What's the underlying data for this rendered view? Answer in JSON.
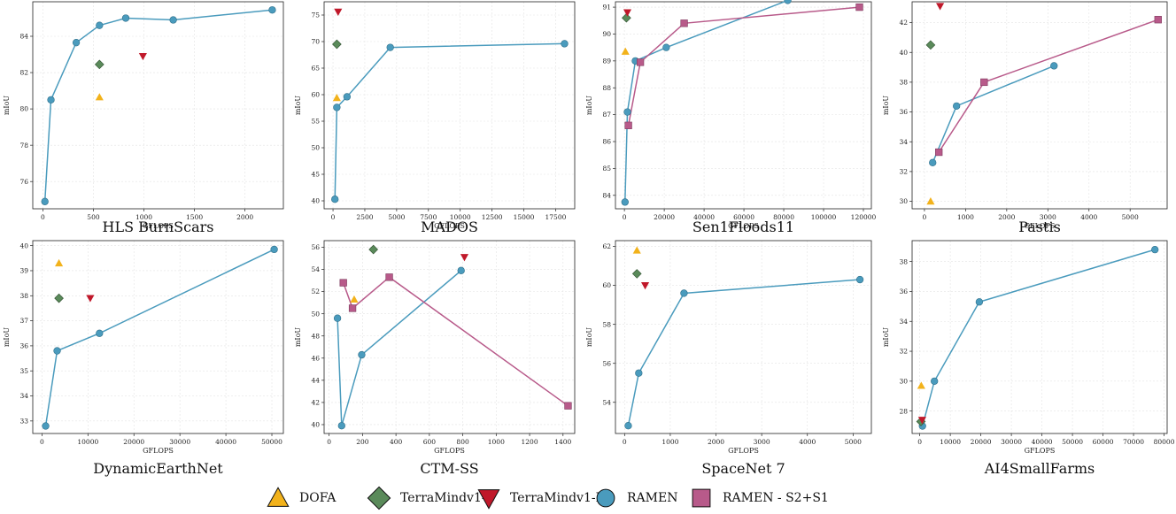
{
  "colors": {
    "DOFA": "#f2b21b",
    "TerraMindv1-B": "#5a8a5a",
    "TerraMindv1-L": "#c0182a",
    "RAMEN": "#4a9bbd",
    "RAMEN - S2+S1": "#b85a8a"
  },
  "legend": {
    "items": [
      {
        "label": "DOFA",
        "marker": "triangle-up",
        "color": "#f2b21b"
      },
      {
        "label": "TerraMindv1-B",
        "marker": "diamond",
        "color": "#5a8a5a"
      },
      {
        "label": "TerraMindv1-L",
        "marker": "triangle-down",
        "color": "#c0182a"
      },
      {
        "label": "RAMEN",
        "marker": "circle",
        "color": "#4a9bbd"
      },
      {
        "label": "RAMEN - S2+S1",
        "marker": "square",
        "color": "#b85a8a"
      }
    ]
  },
  "chart_data": [
    {
      "type": "scatter",
      "title": "HLS BurnScars",
      "xlabel": "GFLOPS",
      "ylabel": "mIoU",
      "xlim": [
        -100,
        2380
      ],
      "ylim": [
        74.5,
        85.9
      ],
      "xticks": [
        0,
        500,
        1000,
        1500,
        2000
      ],
      "yticks": [
        76,
        78,
        80,
        82,
        84
      ],
      "grid": true,
      "series": [
        {
          "name": "RAMEN",
          "marker": "circle",
          "line": true,
          "points": [
            [
              20,
              74.9
            ],
            [
              80,
              80.5
            ],
            [
              330,
              83.65
            ],
            [
              560,
              84.6
            ],
            [
              820,
              85.0
            ],
            [
              1290,
              84.9
            ],
            [
              2270,
              85.45
            ]
          ]
        },
        {
          "name": "DOFA",
          "marker": "triangle-up",
          "line": false,
          "points": [
            [
              560,
              80.65
            ]
          ]
        },
        {
          "name": "TerraMindv1-B",
          "marker": "diamond",
          "line": false,
          "points": [
            [
              560,
              82.45
            ]
          ]
        },
        {
          "name": "TerraMindv1-L",
          "marker": "triangle-down",
          "line": false,
          "points": [
            [
              990,
              82.9
            ]
          ]
        }
      ]
    },
    {
      "type": "scatter",
      "title": "MADOS",
      "xlabel": "GFLOPS",
      "ylabel": "mIoU",
      "xlim": [
        -700,
        19000
      ],
      "ylim": [
        38.5,
        77.5
      ],
      "xticks": [
        0,
        2500,
        5000,
        7500,
        10000,
        12500,
        15000,
        17500
      ],
      "yticks": [
        40,
        45,
        50,
        55,
        60,
        65,
        70,
        75
      ],
      "grid": true,
      "series": [
        {
          "name": "RAMEN",
          "marker": "circle",
          "line": true,
          "points": [
            [
              150,
              40.3
            ],
            [
              300,
              57.6
            ],
            [
              1100,
              59.6
            ],
            [
              4500,
              68.9
            ],
            [
              18200,
              69.6
            ]
          ]
        },
        {
          "name": "DOFA",
          "marker": "triangle-up",
          "line": false,
          "points": [
            [
              300,
              59.4
            ]
          ]
        },
        {
          "name": "TerraMindv1-B",
          "marker": "diamond",
          "line": false,
          "points": [
            [
              300,
              69.5
            ]
          ]
        },
        {
          "name": "TerraMindv1-L",
          "marker": "triangle-down",
          "line": false,
          "points": [
            [
              400,
              75.6
            ]
          ]
        }
      ]
    },
    {
      "type": "scatter",
      "title": "Sen1Floods11",
      "xlabel": "GFLOPS",
      "ylabel": "mIoU",
      "xlim": [
        -4500,
        124000
      ],
      "ylim": [
        83.5,
        91.2
      ],
      "xticks": [
        0,
        20000,
        40000,
        60000,
        80000,
        100000,
        120000
      ],
      "yticks": [
        84,
        85,
        86,
        87,
        88,
        89,
        90,
        91
      ],
      "grid": true,
      "series": [
        {
          "name": "RAMEN",
          "marker": "circle",
          "line": true,
          "points": [
            [
              300,
              83.75
            ],
            [
              1500,
              87.1
            ],
            [
              5500,
              89.0
            ],
            [
              21000,
              89.5
            ],
            [
              82000,
              91.25
            ]
          ]
        },
        {
          "name": "RAMEN - S2+S1",
          "marker": "square",
          "line": true,
          "points": [
            [
              2000,
              86.6
            ],
            [
              8000,
              88.95
            ],
            [
              30000,
              90.4
            ],
            [
              118000,
              91.0
            ]
          ]
        },
        {
          "name": "DOFA",
          "marker": "triangle-up",
          "line": false,
          "points": [
            [
              500,
              89.35
            ]
          ]
        },
        {
          "name": "TerraMindv1-B",
          "marker": "diamond",
          "line": false,
          "points": [
            [
              1000,
              90.6
            ]
          ]
        },
        {
          "name": "TerraMindv1-L",
          "marker": "triangle-down",
          "line": false,
          "points": [
            [
              1500,
              90.8
            ]
          ]
        }
      ]
    },
    {
      "type": "scatter",
      "title": "Pastis",
      "xlabel": "GFLOPS",
      "ylabel": "mIoU",
      "xlim": [
        -300,
        5900
      ],
      "ylim": [
        29.5,
        43.4
      ],
      "xticks": [
        0,
        1000,
        2000,
        3000,
        4000,
        5000
      ],
      "yticks": [
        30,
        32,
        34,
        36,
        38,
        40,
        42
      ],
      "grid": true,
      "series": [
        {
          "name": "RAMEN",
          "marker": "circle",
          "line": true,
          "points": [
            [
              200,
              32.6
            ],
            [
              780,
              36.4
            ],
            [
              3150,
              39.1
            ]
          ]
        },
        {
          "name": "RAMEN - S2+S1",
          "marker": "square",
          "line": true,
          "points": [
            [
              350,
              33.3
            ],
            [
              1450,
              38.0
            ],
            [
              5680,
              42.2
            ]
          ]
        },
        {
          "name": "DOFA",
          "marker": "triangle-up",
          "line": false,
          "points": [
            [
              150,
              30.0
            ]
          ]
        },
        {
          "name": "TerraMindv1-B",
          "marker": "diamond",
          "line": false,
          "points": [
            [
              150,
              40.5
            ]
          ]
        },
        {
          "name": "TerraMindv1-L",
          "marker": "triangle-down",
          "line": false,
          "points": [
            [
              380,
              43.1
            ]
          ]
        }
      ]
    },
    {
      "type": "scatter",
      "title": "DynamicEarthNet",
      "xlabel": "GFLOPS",
      "ylabel": "mIoU",
      "xlim": [
        -2000,
        52500
      ],
      "ylim": [
        32.5,
        40.2
      ],
      "xticks": [
        0,
        10000,
        20000,
        30000,
        40000,
        50000
      ],
      "yticks": [
        33,
        34,
        35,
        36,
        37,
        38,
        39,
        40
      ],
      "grid": true,
      "series": [
        {
          "name": "RAMEN",
          "marker": "circle",
          "line": true,
          "points": [
            [
              800,
              32.8
            ],
            [
              3300,
              35.8
            ],
            [
              12500,
              36.5
            ],
            [
              50500,
              39.85
            ]
          ]
        },
        {
          "name": "DOFA",
          "marker": "triangle-up",
          "line": false,
          "points": [
            [
              3700,
              39.3
            ]
          ]
        },
        {
          "name": "TerraMindv1-B",
          "marker": "diamond",
          "line": false,
          "points": [
            [
              3700,
              37.9
            ]
          ]
        },
        {
          "name": "TerraMindv1-L",
          "marker": "triangle-down",
          "line": false,
          "points": [
            [
              10500,
              37.9
            ]
          ]
        }
      ]
    },
    {
      "type": "scatter",
      "title": "CTM-SS",
      "xlabel": "GFLOPS",
      "ylabel": "mIoU",
      "xlim": [
        -30,
        1470
      ],
      "ylim": [
        39.2,
        56.6
      ],
      "xticks": [
        0,
        200,
        400,
        600,
        800,
        1000,
        1200,
        1400
      ],
      "yticks": [
        40,
        42,
        44,
        46,
        48,
        50,
        52,
        54,
        56
      ],
      "grid": true,
      "series": [
        {
          "name": "RAMEN",
          "marker": "circle",
          "line": true,
          "points": [
            [
              50,
              49.6
            ],
            [
              75,
              39.9
            ],
            [
              195,
              46.3
            ],
            [
              790,
              53.9
            ]
          ]
        },
        {
          "name": "RAMEN - S2+S1",
          "marker": "square",
          "line": true,
          "points": [
            [
              85,
              52.8
            ],
            [
              140,
              50.5
            ],
            [
              360,
              53.3
            ],
            [
              1430,
              41.7
            ]
          ]
        },
        {
          "name": "DOFA",
          "marker": "triangle-up",
          "line": false,
          "points": [
            [
              150,
              51.3
            ]
          ]
        },
        {
          "name": "TerraMindv1-B",
          "marker": "diamond",
          "line": false,
          "points": [
            [
              265,
              55.8
            ]
          ]
        },
        {
          "name": "TerraMindv1-L",
          "marker": "triangle-down",
          "line": false,
          "points": [
            [
              810,
              55.1
            ]
          ]
        }
      ]
    },
    {
      "type": "scatter",
      "title": "SpaceNet 7",
      "xlabel": "GFLOPS",
      "ylabel": "mIoU",
      "xlim": [
        -200,
        5400
      ],
      "ylim": [
        52.4,
        62.3
      ],
      "xticks": [
        0,
        1000,
        2000,
        3000,
        4000,
        5000
      ],
      "yticks": [
        54,
        56,
        58,
        60,
        62
      ],
      "grid": true,
      "series": [
        {
          "name": "RAMEN",
          "marker": "circle",
          "line": true,
          "points": [
            [
              80,
              52.8
            ],
            [
              310,
              55.5
            ],
            [
              1300,
              59.6
            ],
            [
              5150,
              60.3
            ]
          ]
        },
        {
          "name": "DOFA",
          "marker": "triangle-up",
          "line": false,
          "points": [
            [
              270,
              61.8
            ]
          ]
        },
        {
          "name": "TerraMindv1-B",
          "marker": "diamond",
          "line": false,
          "points": [
            [
              270,
              60.6
            ]
          ]
        },
        {
          "name": "TerraMindv1-L",
          "marker": "triangle-down",
          "line": false,
          "points": [
            [
              450,
              60.0
            ]
          ]
        }
      ]
    },
    {
      "type": "scatter",
      "title": "AI4SmallFarms",
      "xlabel": "GFLOPS",
      "ylabel": "mIoU",
      "xlim": [
        -2500,
        81000
      ],
      "ylim": [
        26.5,
        39.4
      ],
      "xticks": [
        0,
        10000,
        20000,
        30000,
        40000,
        50000,
        60000,
        70000,
        80000
      ],
      "yticks": [
        28,
        30,
        32,
        34,
        36,
        38
      ],
      "grid": true,
      "series": [
        {
          "name": "RAMEN",
          "marker": "circle",
          "line": true,
          "points": [
            [
              900,
              27.0
            ],
            [
              4800,
              30.0
            ],
            [
              19500,
              35.3
            ],
            [
              77000,
              38.8
            ]
          ]
        },
        {
          "name": "DOFA",
          "marker": "triangle-up",
          "line": false,
          "points": [
            [
              500,
              29.7
            ]
          ]
        },
        {
          "name": "TerraMindv1-B",
          "marker": "diamond",
          "line": false,
          "points": [
            [
              400,
              27.3
            ]
          ]
        },
        {
          "name": "TerraMindv1-L",
          "marker": "triangle-down",
          "line": false,
          "points": [
            [
              800,
              27.4
            ]
          ]
        }
      ]
    }
  ]
}
